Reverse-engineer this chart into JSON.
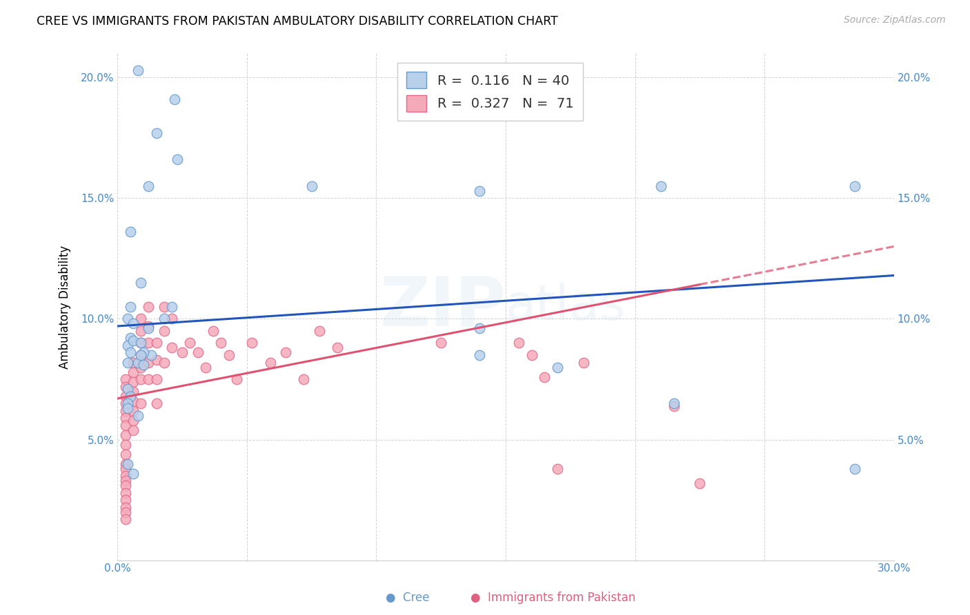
{
  "title": "CREE VS IMMIGRANTS FROM PAKISTAN AMBULATORY DISABILITY CORRELATION CHART",
  "source": "Source: ZipAtlas.com",
  "ylabel": "Ambulatory Disability",
  "xlim": [
    0,
    0.3
  ],
  "ylim": [
    0,
    0.21
  ],
  "xticks": [
    0.0,
    0.05,
    0.1,
    0.15,
    0.2,
    0.25,
    0.3
  ],
  "xtick_labels": [
    "0.0%",
    "",
    "",
    "",
    "",
    "",
    "30.0%"
  ],
  "yticks": [
    0.0,
    0.05,
    0.1,
    0.15,
    0.2
  ],
  "ytick_labels": [
    "",
    "5.0%",
    "10.0%",
    "15.0%",
    "20.0%"
  ],
  "legend1_r": "0.116",
  "legend1_n": "40",
  "legend2_r": "0.327",
  "legend2_n": "71",
  "cree_color": "#b8d0ea",
  "pakistan_color": "#f5aaba",
  "cree_edge": "#6699cc",
  "pakistan_edge": "#e06888",
  "line_blue": "#2255bb",
  "line_pink": "#e05070",
  "cree_x": [
    0.008,
    0.022,
    0.015,
    0.023,
    0.012,
    0.005,
    0.009,
    0.005,
    0.004,
    0.006,
    0.012,
    0.018,
    0.021,
    0.005,
    0.004,
    0.005,
    0.004,
    0.008,
    0.01,
    0.013,
    0.075,
    0.14,
    0.14,
    0.21,
    0.285,
    0.004,
    0.005,
    0.004,
    0.004,
    0.006,
    0.006,
    0.01,
    0.009,
    0.009,
    0.008,
    0.14,
    0.17,
    0.285,
    0.215,
    0.004
  ],
  "cree_y": [
    0.203,
    0.191,
    0.177,
    0.166,
    0.155,
    0.136,
    0.115,
    0.105,
    0.1,
    0.098,
    0.096,
    0.1,
    0.105,
    0.092,
    0.089,
    0.086,
    0.082,
    0.082,
    0.081,
    0.085,
    0.155,
    0.153,
    0.096,
    0.155,
    0.155,
    0.071,
    0.068,
    0.065,
    0.04,
    0.036,
    0.091,
    0.086,
    0.09,
    0.085,
    0.06,
    0.085,
    0.08,
    0.038,
    0.065,
    0.063
  ],
  "pak_x": [
    0.003,
    0.003,
    0.003,
    0.003,
    0.003,
    0.003,
    0.003,
    0.003,
    0.003,
    0.003,
    0.003,
    0.003,
    0.003,
    0.003,
    0.003,
    0.003,
    0.003,
    0.003,
    0.003,
    0.003,
    0.006,
    0.006,
    0.006,
    0.006,
    0.006,
    0.006,
    0.006,
    0.006,
    0.009,
    0.009,
    0.009,
    0.009,
    0.009,
    0.009,
    0.009,
    0.012,
    0.012,
    0.012,
    0.012,
    0.012,
    0.015,
    0.015,
    0.015,
    0.015,
    0.018,
    0.018,
    0.018,
    0.021,
    0.021,
    0.025,
    0.028,
    0.031,
    0.034,
    0.037,
    0.04,
    0.043,
    0.046,
    0.052,
    0.059,
    0.065,
    0.072,
    0.078,
    0.085,
    0.125,
    0.155,
    0.16,
    0.165,
    0.18,
    0.17,
    0.215,
    0.225
  ],
  "pak_y": [
    0.075,
    0.072,
    0.068,
    0.065,
    0.062,
    0.059,
    0.056,
    0.052,
    0.048,
    0.044,
    0.04,
    0.038,
    0.035,
    0.033,
    0.031,
    0.028,
    0.025,
    0.022,
    0.02,
    0.017,
    0.082,
    0.078,
    0.074,
    0.07,
    0.066,
    0.062,
    0.058,
    0.054,
    0.1,
    0.095,
    0.09,
    0.085,
    0.08,
    0.075,
    0.065,
    0.105,
    0.097,
    0.09,
    0.082,
    0.075,
    0.09,
    0.083,
    0.075,
    0.065,
    0.105,
    0.095,
    0.082,
    0.1,
    0.088,
    0.086,
    0.09,
    0.086,
    0.08,
    0.095,
    0.09,
    0.085,
    0.075,
    0.09,
    0.082,
    0.086,
    0.075,
    0.095,
    0.088,
    0.09,
    0.09,
    0.085,
    0.076,
    0.082,
    0.038,
    0.064,
    0.032
  ],
  "blue_line_start_y": 0.097,
  "blue_line_end_y": 0.118,
  "pink_line_start_y": 0.067,
  "pink_line_end_y": 0.13
}
